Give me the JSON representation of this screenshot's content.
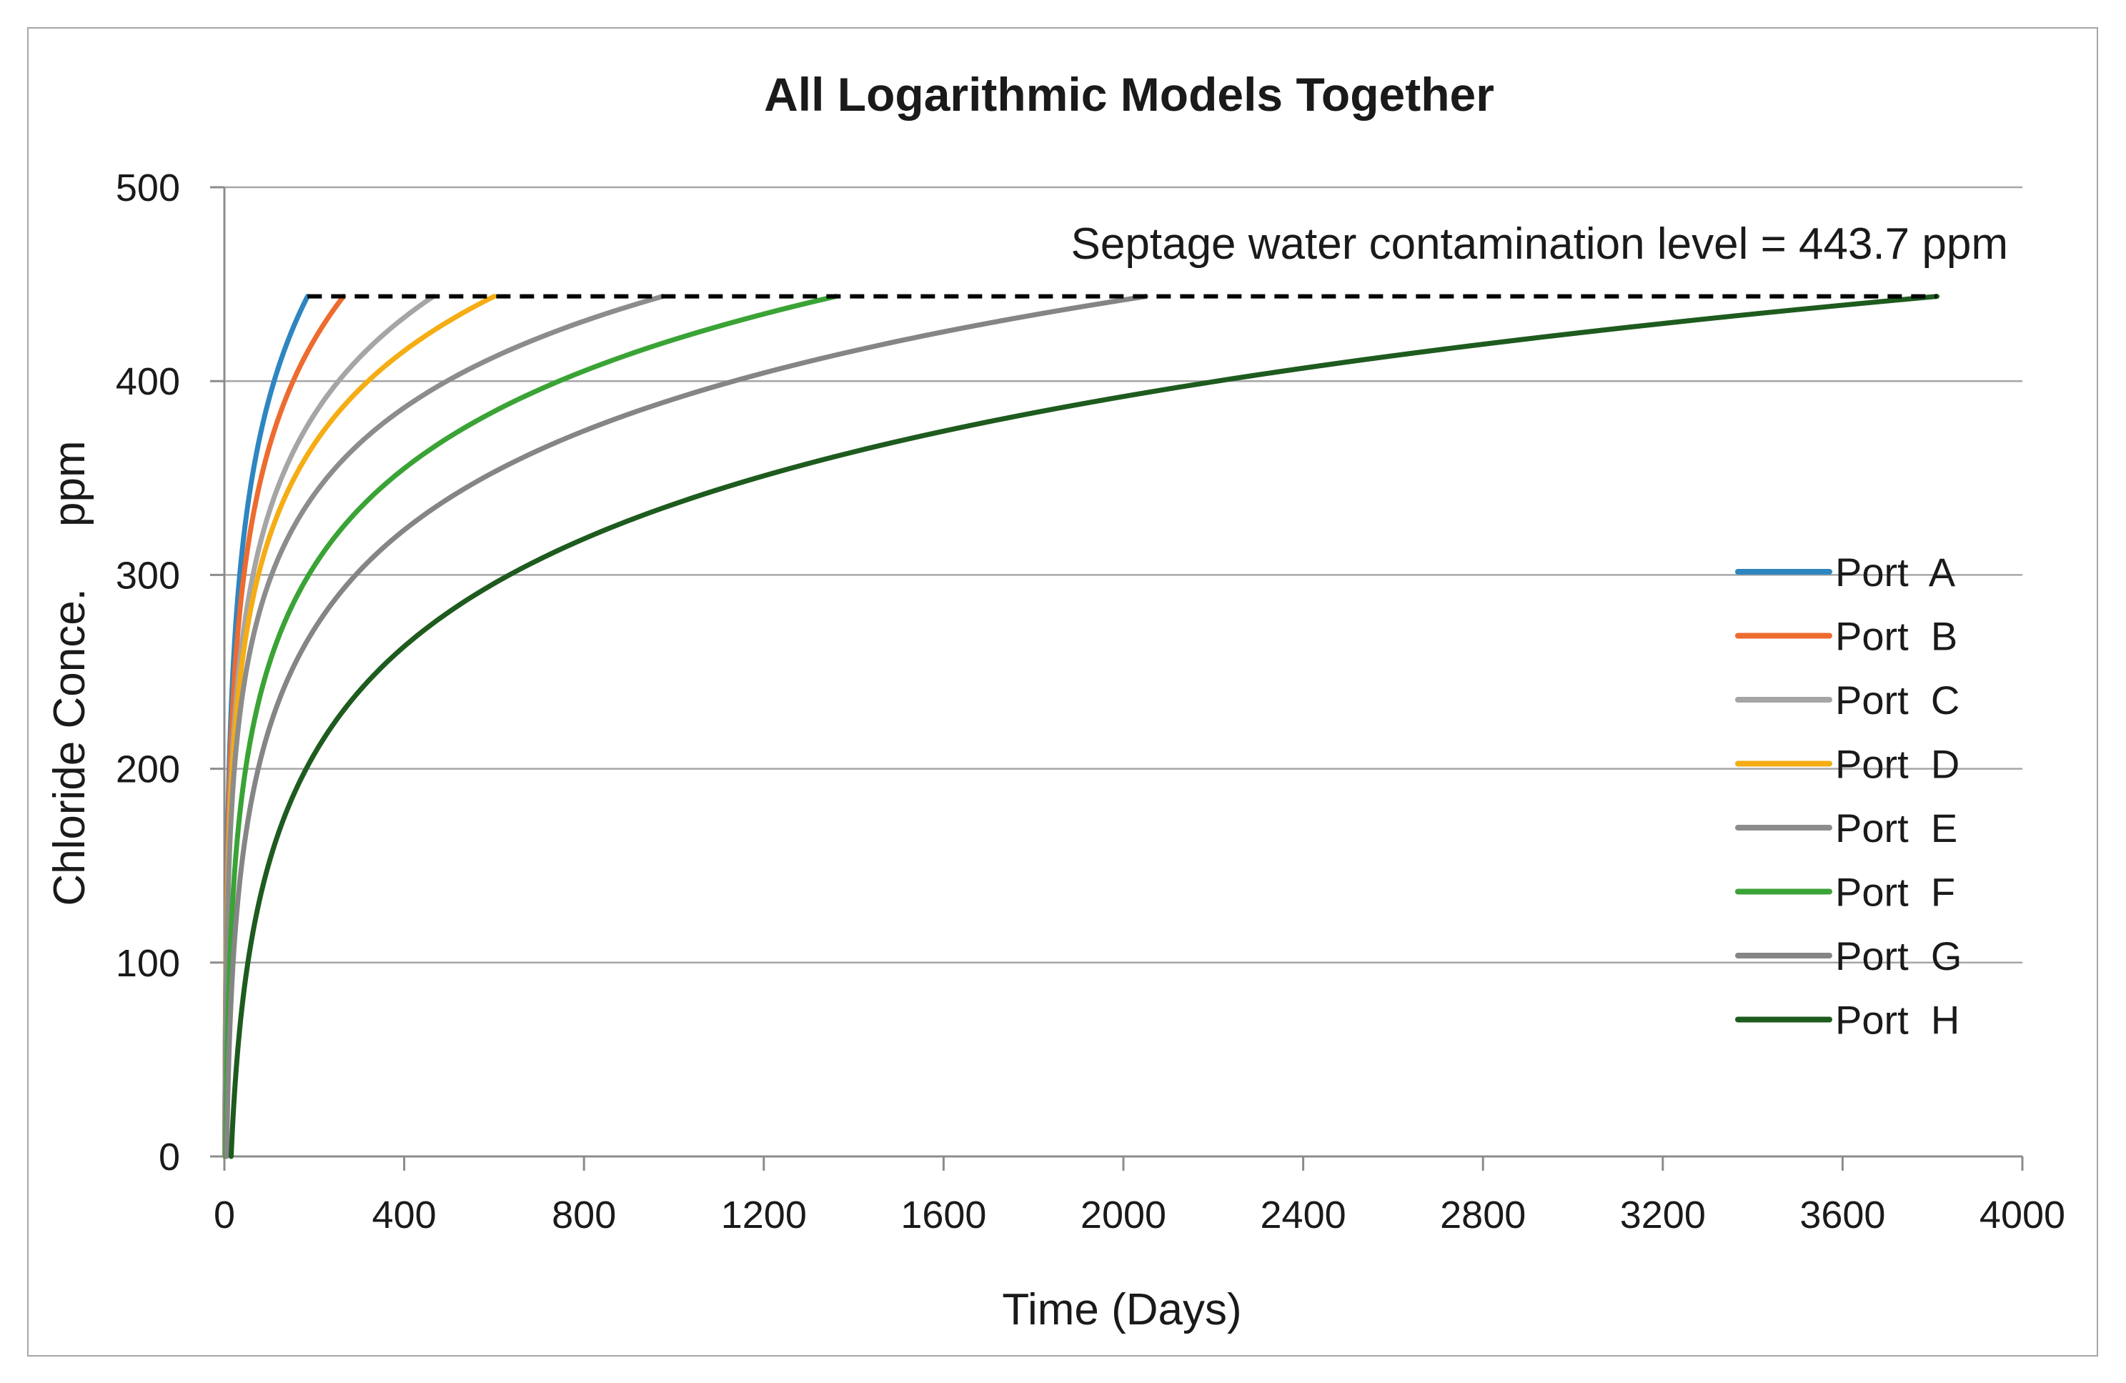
{
  "chart_data": {
    "type": "line",
    "title": "All Logarithmic Models Together",
    "xlabel": "Time (Days)",
    "ylabel": "Chloride Conce.     ppm",
    "xlim": [
      0,
      4000
    ],
    "ylim": [
      0,
      500
    ],
    "xticks": [
      0,
      400,
      800,
      1200,
      1600,
      2000,
      2400,
      2800,
      3200,
      3600,
      4000
    ],
    "yticks": [
      0,
      100,
      200,
      300,
      400,
      500
    ],
    "grid": "horizontal",
    "legend_position": "right",
    "threshold": {
      "value": 443.7,
      "x_start": 185,
      "x_end": 3810,
      "style": "dashed",
      "color": "#000000",
      "label": "Septage water contamination level = 443.7 ppm"
    },
    "series": [
      {
        "name": "Port  A",
        "color": "#2e86c1",
        "x_start": 1,
        "x_end": 185,
        "y_start": 0,
        "y_end": 443.7
      },
      {
        "name": "Port  B",
        "color": "#ed6b2f",
        "x_start": 1,
        "x_end": 265,
        "y_start": 0,
        "y_end": 443.7
      },
      {
        "name": "Port  C",
        "color": "#a5a5a5",
        "x_start": 1,
        "x_end": 465,
        "y_start": 0,
        "y_end": 443.7
      },
      {
        "name": "Port  D",
        "color": "#f5ad14",
        "x_start": 1,
        "x_end": 600,
        "y_start": 0,
        "y_end": 443.7
      },
      {
        "name": "Port  E",
        "color": "#8c8c8c",
        "x_start": 1,
        "x_end": 975,
        "y_start": 0,
        "y_end": 443.7
      },
      {
        "name": "Port  F",
        "color": "#3aa335",
        "x_start": 3,
        "x_end": 1360,
        "y_start": 0,
        "y_end": 443.7
      },
      {
        "name": "Port  G",
        "color": "#858585",
        "x_start": 5,
        "x_end": 2050,
        "y_start": 0,
        "y_end": 443.7
      },
      {
        "name": "Port  H",
        "color": "#1e5b1e",
        "x_start": 15,
        "x_end": 3810,
        "y_start": 0,
        "y_end": 443.7
      }
    ]
  }
}
